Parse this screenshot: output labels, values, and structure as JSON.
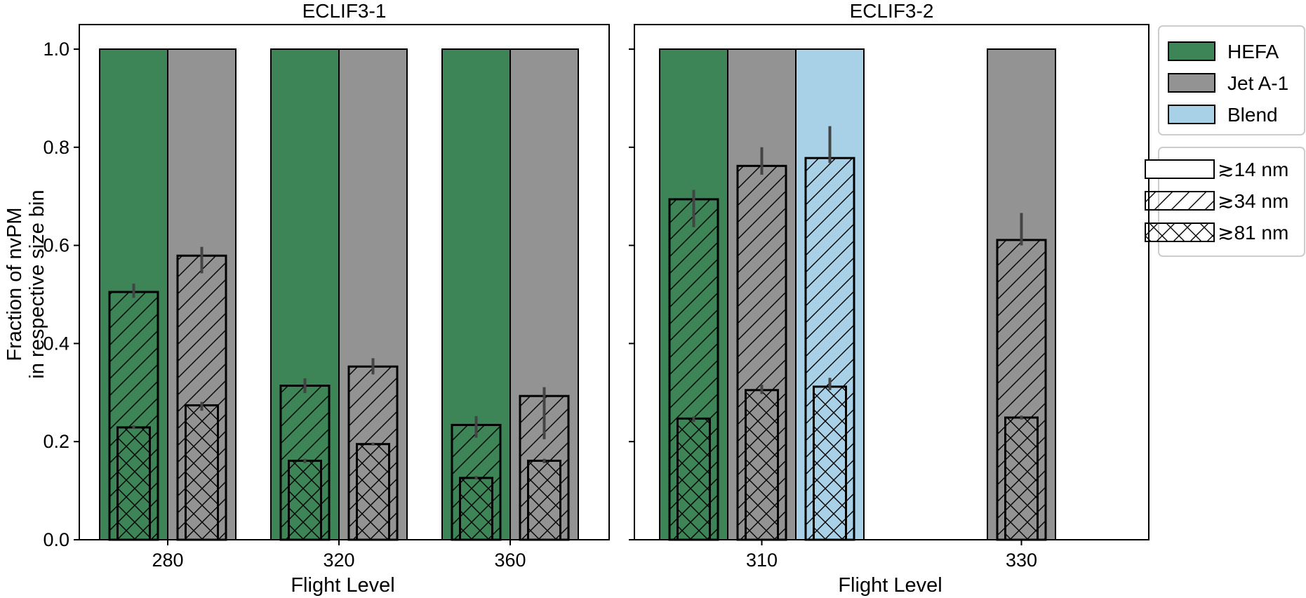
{
  "chart_data": {
    "type": "bar",
    "ylabel": [
      "Fraction of nvPM",
      "in respective size bin"
    ],
    "ylim": [
      0,
      1.0
    ],
    "yticks": [
      "0.0",
      "0.2",
      "0.4",
      "0.6",
      "0.8",
      "1.0"
    ],
    "colors": {
      "HEFA": "#3d8457",
      "Jet A-1": "#939393",
      "Blend": "#a8d0e6"
    },
    "legend_fuel": [
      "HEFA",
      "Jet A-1",
      "Blend"
    ],
    "legend_size": [
      "≳14 nm",
      "≳34 nm",
      "≳81 nm"
    ],
    "panels": [
      {
        "title": "ECLIF3-1",
        "xlabel": "Flight Level",
        "groups": [
          {
            "label": "280",
            "bars": [
              {
                "fuel": "HEFA",
                "v14": 1.0,
                "v34": 0.505,
                "e34": [
                  0.493,
                  0.522
                ],
                "v81": 0.229,
                "e81": [
                  0.226,
                  0.233
                ]
              },
              {
                "fuel": "Jet A-1",
                "v14": 1.0,
                "v34": 0.579,
                "e34": [
                  0.543,
                  0.597
                ],
                "v81": 0.274,
                "e81": [
                  0.263,
                  0.281
                ]
              }
            ]
          },
          {
            "label": "320",
            "bars": [
              {
                "fuel": "HEFA",
                "v14": 1.0,
                "v34": 0.314,
                "e34": [
                  0.299,
                  0.329
                ],
                "v81": 0.161,
                "e81": [
                  0.156,
                  0.165
                ]
              },
              {
                "fuel": "Jet A-1",
                "v14": 1.0,
                "v34": 0.353,
                "e34": [
                  0.337,
                  0.37
                ],
                "v81": 0.195,
                "e81": [
                  0.192,
                  0.198
                ]
              }
            ]
          },
          {
            "label": "360",
            "bars": [
              {
                "fuel": "HEFA",
                "v14": 1.0,
                "v34": 0.234,
                "e34": [
                  0.208,
                  0.252
                ],
                "v81": 0.126,
                "e81": [
                  0.123,
                  0.13
                ]
              },
              {
                "fuel": "Jet A-1",
                "v14": 1.0,
                "v34": 0.293,
                "e34": [
                  0.205,
                  0.311
                ],
                "v81": 0.161,
                "e81": [
                  0.156,
                  0.165
                ]
              }
            ]
          }
        ]
      },
      {
        "title": "ECLIF3-2",
        "xlabel": "Flight Level",
        "groups": [
          {
            "label": "310",
            "bars": [
              {
                "fuel": "HEFA",
                "v14": 1.0,
                "v34": 0.694,
                "e34": [
                  0.637,
                  0.713
                ],
                "v81": 0.247,
                "e81": [
                  0.24,
                  0.251
                ]
              },
              {
                "fuel": "Jet A-1",
                "v14": 1.0,
                "v34": 0.762,
                "e34": [
                  0.744,
                  0.8
                ],
                "v81": 0.305,
                "e81": [
                  0.297,
                  0.316
                ]
              },
              {
                "fuel": "Blend",
                "v14": 1.0,
                "v34": 0.778,
                "e34": [
                  0.768,
                  0.843
                ],
                "v81": 0.312,
                "e81": [
                  0.305,
                  0.33
                ]
              }
            ]
          },
          {
            "label": "330",
            "bars": [
              {
                "fuel": "Jet A-1",
                "v14": 1.0,
                "v34": 0.611,
                "e34": [
                  0.6,
                  0.666
                ],
                "v81": 0.249,
                "e81": [
                  0.245,
                  0.253
                ]
              }
            ]
          }
        ]
      }
    ]
  }
}
